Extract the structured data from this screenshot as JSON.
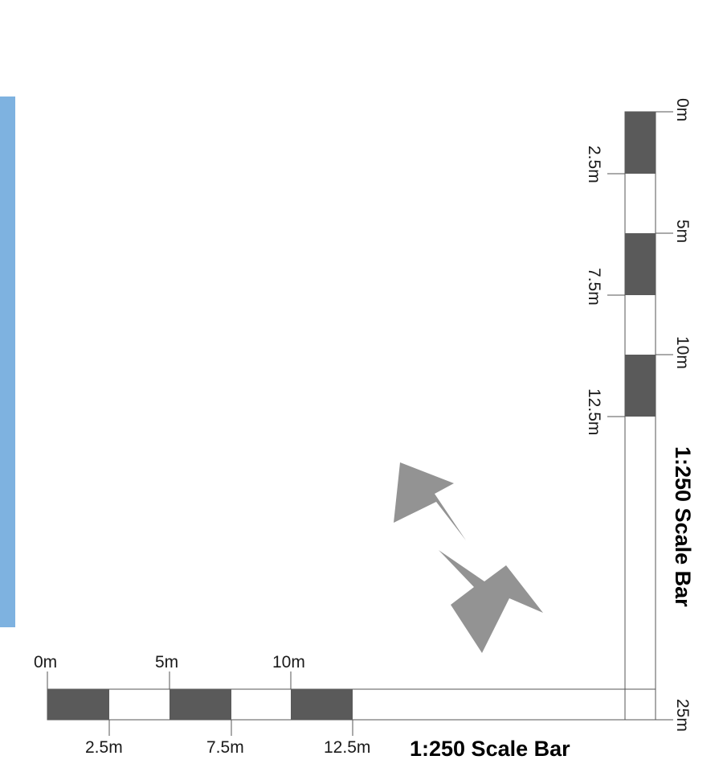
{
  "colors": {
    "side_strip": "#7eb2e0",
    "bar_dark": "#5a5a5a",
    "bar_light": "#ffffff",
    "arrow": "#939393"
  },
  "horizontal_scale": {
    "title": "1:250 Scale Bar",
    "top_labels": [
      "0m",
      "5m",
      "10m"
    ],
    "bottom_labels": [
      "2.5m",
      "7.5m",
      "12.5m"
    ]
  },
  "vertical_scale": {
    "title": "1:250 Scale Bar",
    "right_labels": [
      "0m",
      "5m",
      "10m",
      "25m"
    ],
    "left_labels": [
      "2.5m",
      "7.5m",
      "12.5m"
    ]
  },
  "north_arrow": {
    "icon": "north-arrow-icon"
  }
}
